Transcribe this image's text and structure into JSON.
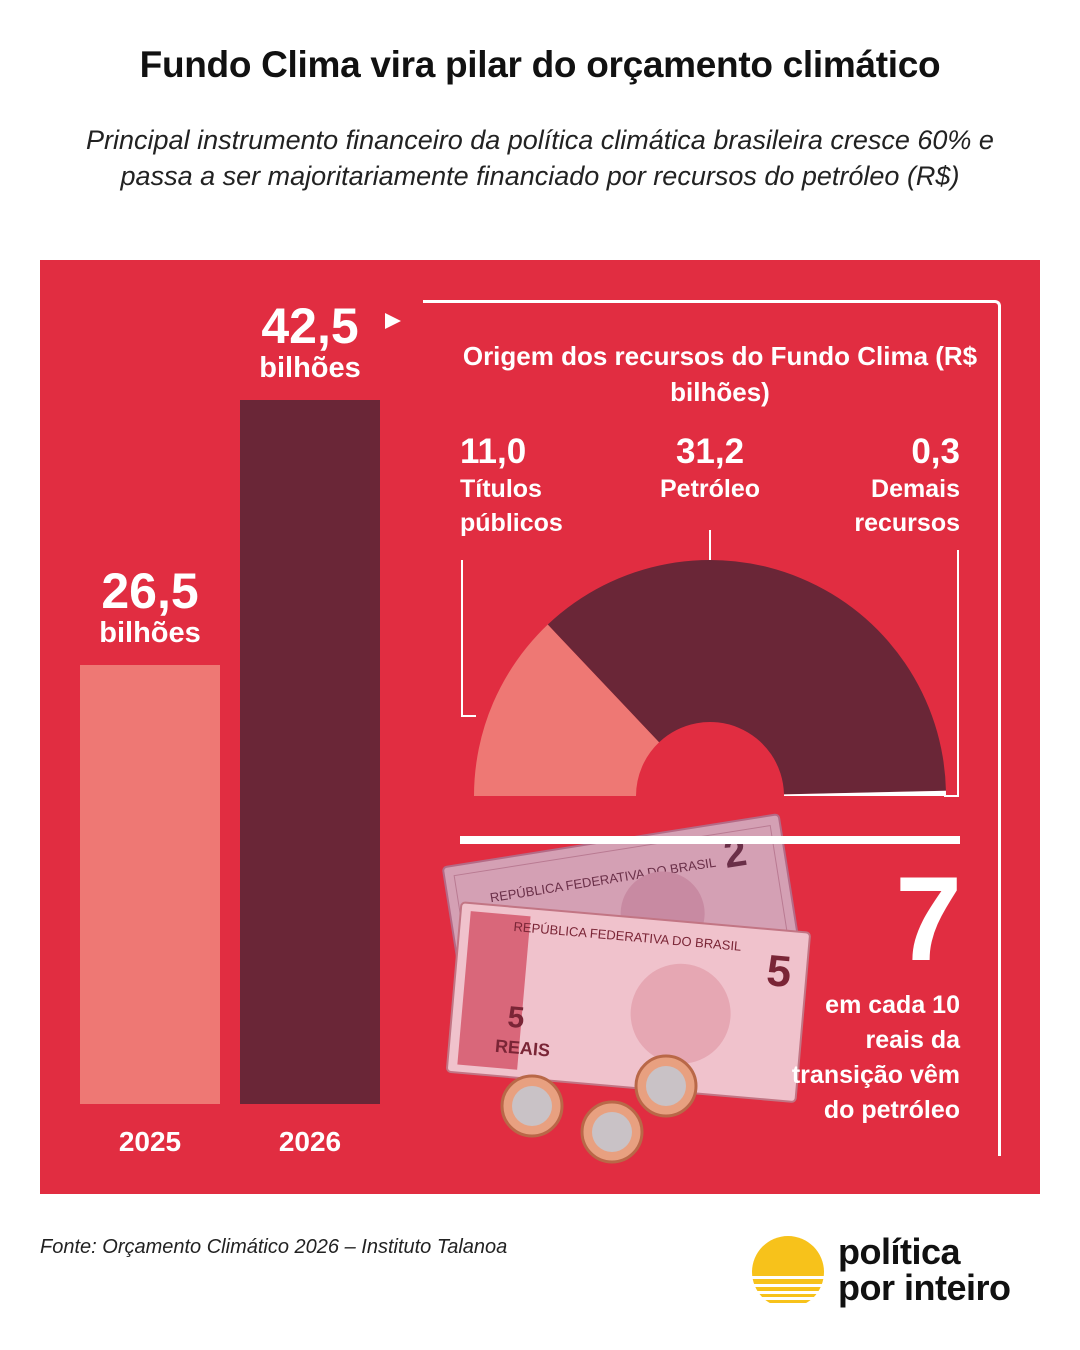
{
  "title": "Fundo Clima vira pilar do orçamento climático",
  "subtitle": "Principal instrumento financeiro da política climática brasileira cresce 60% e passa a ser majoritariamente financiado por recursos do petróleo (R$)",
  "colors": {
    "panel_bg": "#e12d41",
    "bar_2025": "#ee7874",
    "bar_2026": "#6a2637",
    "white": "#ffffff"
  },
  "chart_data": [
    {
      "type": "bar",
      "categories": [
        "2025",
        "2026"
      ],
      "values": [
        26.5,
        42.5
      ],
      "value_labels": [
        {
          "number": "26,5",
          "unit": "bilhões"
        },
        {
          "number": "42,5",
          "unit": "bilhões"
        }
      ],
      "ylim": [
        0,
        50
      ]
    },
    {
      "type": "pie",
      "shape": "semi-donut",
      "title": "Origem dos recursos do Fundo Clima (R$ bilhões)",
      "slices": [
        {
          "value": 11.0,
          "value_label": "11,0",
          "name": "Títulos públicos",
          "color": "#ee7874"
        },
        {
          "value": 31.2,
          "value_label": "31,2",
          "name": "Petróleo",
          "color": "#6a2637"
        },
        {
          "value": 0.3,
          "value_label": "0,3",
          "name": "Demais recursos",
          "color": "#ffffff"
        }
      ]
    }
  ],
  "highlight": {
    "number": "7",
    "text": "em cada 10 reais da transição vêm do petróleo"
  },
  "source": "Fonte: Orçamento Climático 2026 – Instituto Talanoa",
  "logo": {
    "line1": "política",
    "line2": "por inteiro"
  }
}
